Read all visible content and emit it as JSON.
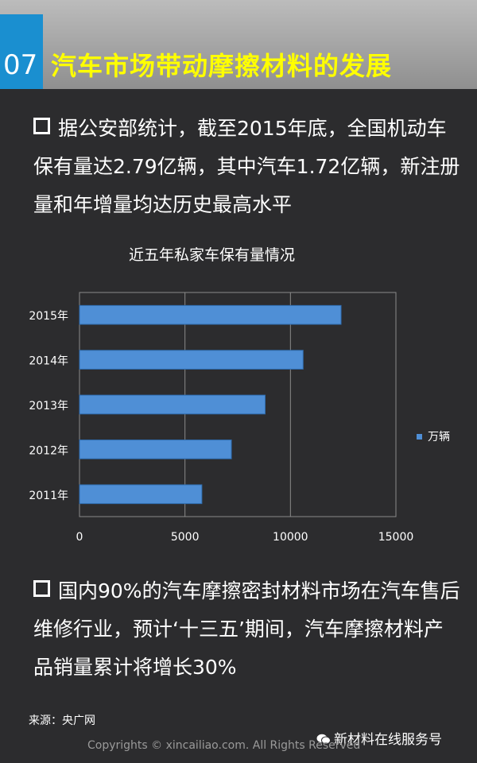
{
  "header": {
    "number": "07",
    "title": "汽车市场带动摩擦材料的发展"
  },
  "bullets": [
    "据公安部统计，截至2015年底，全国机动车保有量达2.79亿辆，其中汽车1.72亿辆，新注册量和年增量均达历史最高水平",
    "国内90%的汽车摩擦密封材料市场在汽车售后维修行业，预计‘十三五’期间，汽车摩擦材料产品销量累计将增长30%"
  ],
  "chart_data": {
    "type": "bar",
    "orientation": "horizontal",
    "title": "近五年私家车保有量情况",
    "categories": [
      "2011年",
      "2012年",
      "2013年",
      "2014年",
      "2015年"
    ],
    "series": [
      {
        "name": "万辆",
        "values": [
          5800,
          7200,
          8800,
          10600,
          12400
        ]
      }
    ],
    "xlim": [
      0,
      15000
    ],
    "xticks": [
      0,
      5000,
      10000,
      15000
    ],
    "legend_position": "right",
    "grid": "vertical",
    "colors": {
      "bar": "#4f8fd6",
      "bar_edge": "#2f6db0",
      "grid": "#8a8a8a",
      "plot_bg": "#2c2c2e"
    }
  },
  "footer": {
    "source": "来源：央广网",
    "brand": "新材料在线服务号",
    "copyright": "Copyrights © xincailiao.com. All Rights Reserved",
    "brand_icon": "wechat-icon"
  }
}
